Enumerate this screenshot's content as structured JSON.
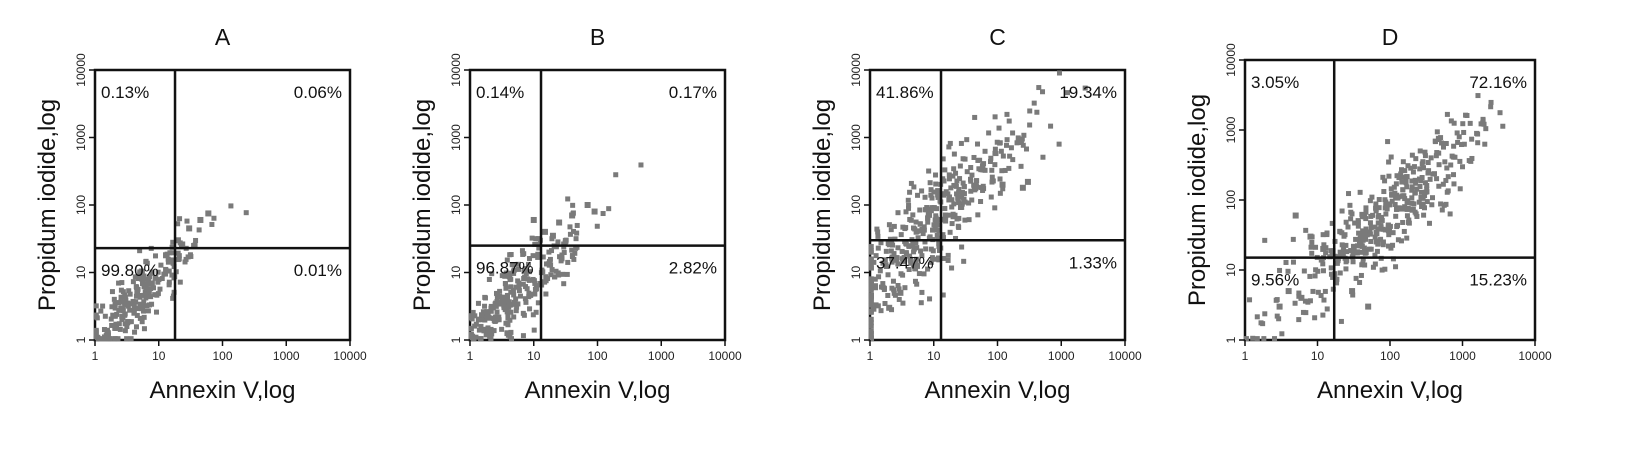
{
  "chart_data": [
    {
      "type": "scatter",
      "title": "A",
      "xlabel": "Annexin V,log",
      "ylabel": "Propidum iodide,log",
      "x_scale": "log",
      "y_scale": "log",
      "xlim": [
        1,
        10000
      ],
      "ylim": [
        1,
        10000
      ],
      "x_ticks": [
        "1",
        "10",
        "100",
        "1000",
        "10000"
      ],
      "y_ticks": [
        "1",
        "10",
        "100",
        "1000",
        "10000"
      ],
      "gate": {
        "x": 18,
        "y": 23
      },
      "quadrants": {
        "upper_left": "0.13%",
        "upper_right": "0.06%",
        "lower_left": "99.80%",
        "lower_right": "0.01%"
      },
      "cloud": {
        "x_center": 4,
        "y_center": 3.5,
        "spread": 0.55,
        "count": 260
      },
      "extra_points": [
        [
          13,
          18
        ],
        [
          20,
          30
        ],
        [
          30,
          45
        ],
        [
          45,
          60
        ],
        [
          60,
          75
        ]
      ]
    },
    {
      "type": "scatter",
      "title": "B",
      "xlabel": "Annexin V,log",
      "ylabel": "Propidum iodide,log",
      "x_scale": "log",
      "y_scale": "log",
      "xlim": [
        1,
        10000
      ],
      "ylim": [
        1,
        10000
      ],
      "x_ticks": [
        "1",
        "10",
        "100",
        "1000",
        "10000"
      ],
      "y_ticks": [
        "1",
        "10",
        "100",
        "1000",
        "10000"
      ],
      "gate": {
        "x": 13,
        "y": 25
      },
      "quadrants": {
        "upper_left": "0.14%",
        "upper_right": "0.17%",
        "lower_left": "96.87%",
        "lower_right": "2.82%"
      },
      "cloud": {
        "x_center": 4.5,
        "y_center": 4.5,
        "spread": 0.6,
        "count": 300
      },
      "extra_points": [
        [
          15,
          40
        ],
        [
          25,
          55
        ],
        [
          40,
          70
        ],
        [
          70,
          100
        ],
        [
          90,
          80
        ],
        [
          10,
          60
        ],
        [
          20,
          35
        ]
      ]
    },
    {
      "type": "scatter",
      "title": "C",
      "xlabel": "Annexin V,log",
      "ylabel": "Propidum iodide,log",
      "x_scale": "log",
      "y_scale": "log",
      "xlim": [
        1,
        10000
      ],
      "ylim": [
        1,
        10000
      ],
      "x_ticks": [
        "1",
        "10",
        "100",
        "1000",
        "10000"
      ],
      "y_ticks": [
        "1",
        "10",
        "100",
        "1000",
        "10000"
      ],
      "gate": {
        "x": 13,
        "y": 30
      },
      "quadrants": {
        "upper_left": "41.86%",
        "upper_right": "19.34%",
        "lower_left": "37.47%",
        "lower_right": "1.33%"
      },
      "cloud": {
        "x_center": 8,
        "y_center": 45,
        "spread": 0.8,
        "count": 420
      },
      "extra_points": [
        [
          120,
          200
        ],
        [
          250,
          180
        ],
        [
          300,
          220
        ],
        [
          2,
          3
        ],
        [
          3,
          5
        ]
      ]
    },
    {
      "type": "scatter",
      "title": "D",
      "xlabel": "Annexin V,log",
      "ylabel": "Propidum iodide,log",
      "x_scale": "log",
      "y_scale": "log",
      "xlim": [
        1,
        10000
      ],
      "ylim": [
        1,
        10000
      ],
      "x_ticks": [
        "1",
        "10",
        "100",
        "1000",
        "10000"
      ],
      "y_ticks": [
        "1",
        "10",
        "100",
        "1000",
        "10000"
      ],
      "gate": {
        "x": 17,
        "y": 15
      },
      "quadrants": {
        "upper_left": "3.05%",
        "upper_right": "72.16%",
        "lower_left": "9.56%",
        "lower_right": "15.23%"
      },
      "cloud": {
        "x_center": 80,
        "y_center": 60,
        "spread": 0.7,
        "count": 420
      },
      "extra_points": [
        [
          3,
          3
        ],
        [
          4,
          5
        ],
        [
          6,
          4
        ],
        [
          30,
          5
        ],
        [
          50,
          3
        ],
        [
          8,
          30
        ],
        [
          5,
          60
        ],
        [
          12,
          20
        ]
      ]
    }
  ]
}
